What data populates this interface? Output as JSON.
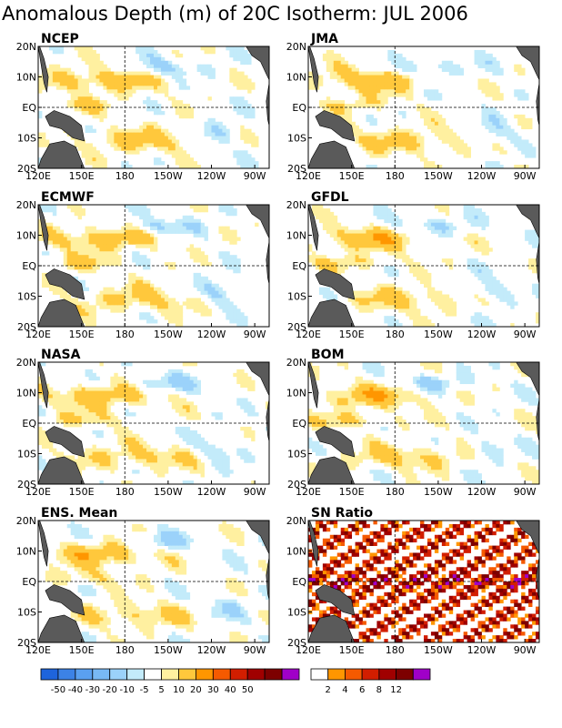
{
  "title": "Anomalous Depth (m) of 20C Isotherm: JUL 2006",
  "x_ticks": [
    "120E",
    "150E",
    "180",
    "150W",
    "120W",
    "90W"
  ],
  "y_ticks": [
    "20N",
    "10N",
    "EQ",
    "10S",
    "20S"
  ],
  "chart_data": [
    {
      "type": "heatmap",
      "title": "NCEP",
      "xlabel": "",
      "ylabel": "",
      "xlim": [
        "120E",
        "80W"
      ],
      "ylim": [
        "20S",
        "20N"
      ],
      "grid": "dashed lines at 180 and EQ"
    },
    {
      "type": "heatmap",
      "title": "JMA",
      "xlabel": "",
      "ylabel": "",
      "xlim": [
        "120E",
        "80W"
      ],
      "ylim": [
        "20S",
        "20N"
      ],
      "grid": "dashed lines at 180 and EQ"
    },
    {
      "type": "heatmap",
      "title": "ECMWF",
      "xlabel": "",
      "ylabel": "",
      "xlim": [
        "120E",
        "80W"
      ],
      "ylim": [
        "20S",
        "20N"
      ],
      "grid": "dashed lines at 180 and EQ"
    },
    {
      "type": "heatmap",
      "title": "GFDL",
      "xlabel": "",
      "ylabel": "",
      "xlim": [
        "120E",
        "80W"
      ],
      "ylim": [
        "20S",
        "20N"
      ],
      "grid": "dashed lines at 180 and EQ"
    },
    {
      "type": "heatmap",
      "title": "NASA",
      "xlabel": "",
      "ylabel": "",
      "xlim": [
        "120E",
        "80W"
      ],
      "ylim": [
        "20S",
        "20N"
      ],
      "grid": "dashed lines at 180 and EQ"
    },
    {
      "type": "heatmap",
      "title": "BOM",
      "xlabel": "",
      "ylabel": "",
      "xlim": [
        "120E",
        "80W"
      ],
      "ylim": [
        "20S",
        "20N"
      ],
      "grid": "dashed lines at 180 and EQ"
    },
    {
      "type": "heatmap",
      "title": "ENS. Mean",
      "xlabel": "",
      "ylabel": "",
      "xlim": [
        "120E",
        "80W"
      ],
      "ylim": [
        "20S",
        "20N"
      ],
      "grid": "dashed lines at 180 and EQ"
    },
    {
      "type": "heatmap",
      "title": "SN Ratio",
      "xlabel": "",
      "ylabel": "",
      "xlim": [
        "120E",
        "80W"
      ],
      "ylim": [
        "20S",
        "20N"
      ],
      "grid": "dashed lines at 180 and EQ"
    }
  ],
  "colorbars": [
    {
      "labels": [
        "-50",
        "-40",
        "-30",
        "-20",
        "-10",
        "-5",
        "5",
        "10",
        "20",
        "30",
        "40",
        "50"
      ],
      "colors": [
        "#1e64dc",
        "#3c82e6",
        "#5aa0f0",
        "#78b9f5",
        "#9bd2fa",
        "#c3ebfa",
        "#ffffff",
        "#fff0a0",
        "#ffc83c",
        "#ff9600",
        "#f55a00",
        "#d21e00",
        "#a00000",
        "#7d0000",
        "#a000c8"
      ]
    },
    {
      "labels": [
        "2",
        "4",
        "6",
        "8",
        "12"
      ],
      "colors": [
        "#ffffff",
        "#ff9600",
        "#f55a00",
        "#d21e00",
        "#a00000",
        "#7d0000",
        "#a000c8"
      ]
    }
  ],
  "colors": {
    "land": "#5a5a5a",
    "background": "#ffffff"
  }
}
